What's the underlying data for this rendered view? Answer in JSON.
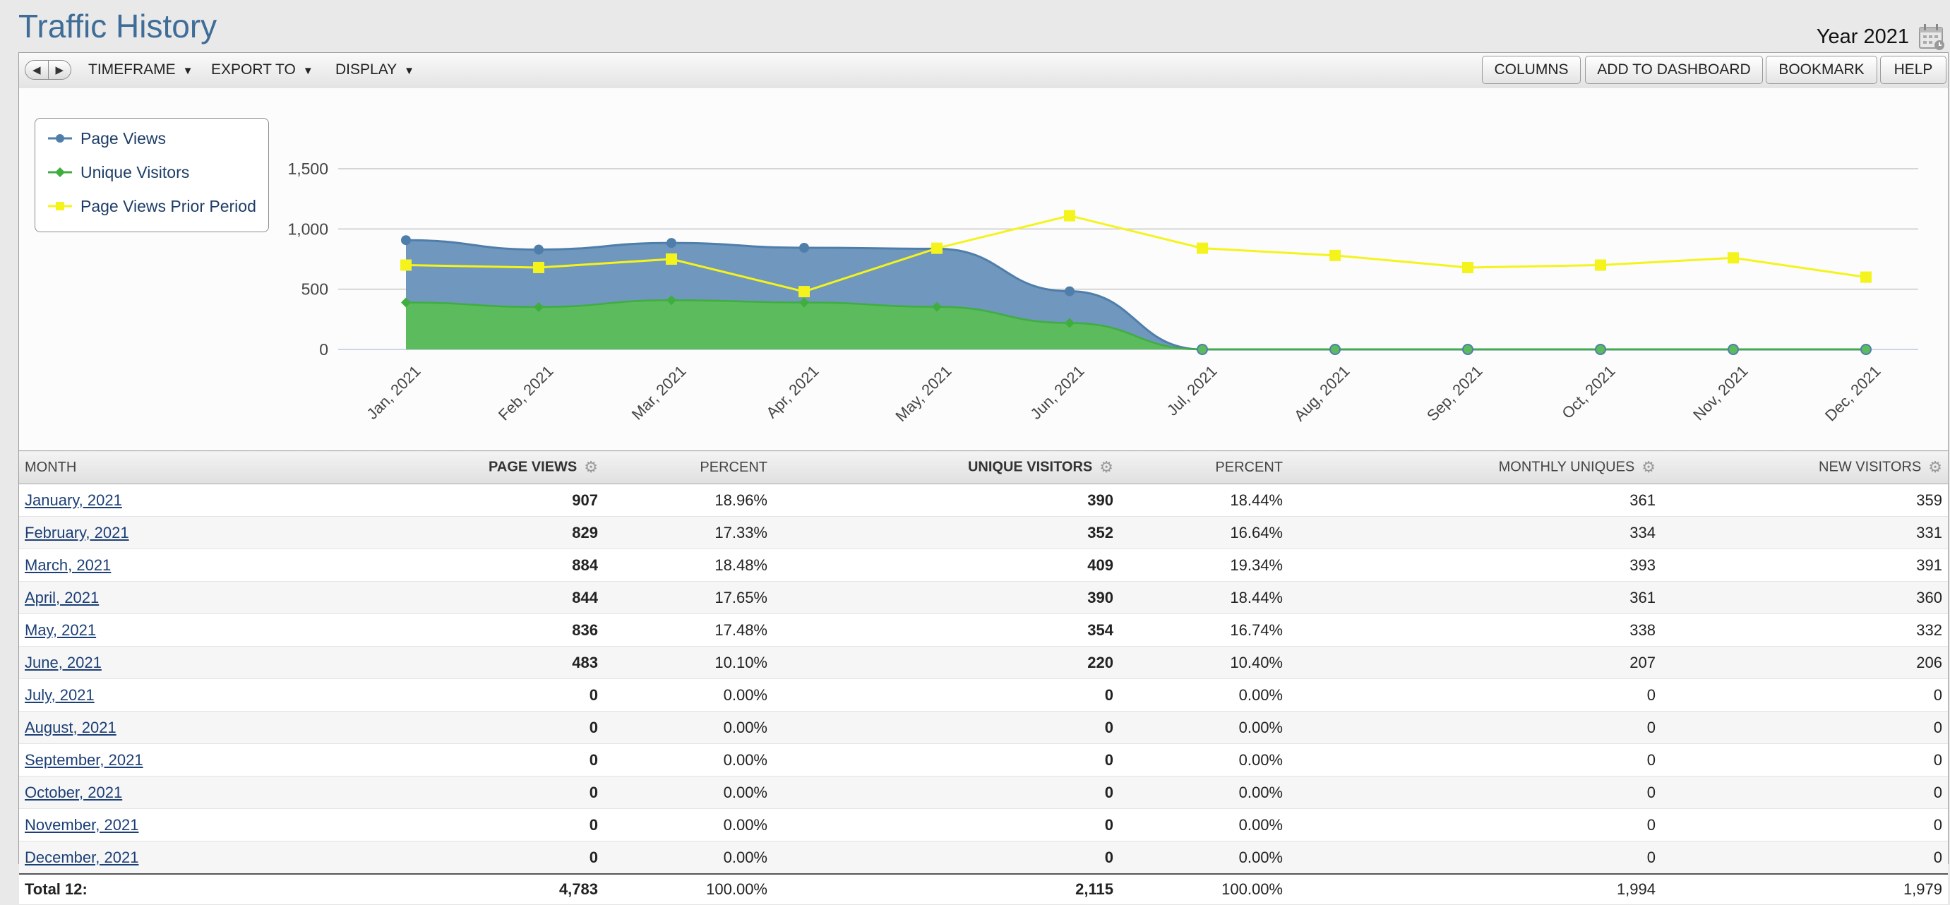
{
  "header": {
    "title": "Traffic History",
    "year_label": "Year 2021"
  },
  "toolbar": {
    "menus": [
      "TIMEFRAME",
      "EXPORT TO",
      "DISPLAY"
    ],
    "buttons": [
      "COLUMNS",
      "ADD TO DASHBOARD",
      "BOOKMARK",
      "HELP"
    ]
  },
  "colors": {
    "page_views": "#4f7eab",
    "page_views_fill": "#7097bd",
    "unique_visitors": "#3fae3f",
    "unique_visitors_fill": "#5cbb5c",
    "prior_period": "#f4f41c",
    "title": "#3f6d98"
  },
  "chart_data": {
    "type": "area",
    "categories": [
      "Jan, 2021",
      "Feb, 2021",
      "Mar, 2021",
      "Apr, 2021",
      "May, 2021",
      "Jun, 2021",
      "Jul, 2021",
      "Aug, 2021",
      "Sep, 2021",
      "Oct, 2021",
      "Nov, 2021",
      "Dec, 2021"
    ],
    "series": [
      {
        "name": "Page Views",
        "values": [
          907,
          829,
          884,
          844,
          836,
          483,
          0,
          0,
          0,
          0,
          0,
          0
        ]
      },
      {
        "name": "Unique Visitors",
        "values": [
          390,
          352,
          409,
          390,
          354,
          220,
          0,
          0,
          0,
          0,
          0,
          0
        ]
      },
      {
        "name": "Page Views Prior Period",
        "values": [
          700,
          680,
          750,
          480,
          840,
          1110,
          840,
          780,
          680,
          700,
          760,
          600
        ]
      }
    ],
    "yticks": [
      "1,500",
      "1,000",
      "500",
      "0"
    ],
    "ylim": [
      0,
      1500
    ],
    "legend_position": "top-left",
    "grid": true
  },
  "table": {
    "columns": [
      "MONTH",
      "PAGE VIEWS",
      "PERCENT",
      "UNIQUE VISITORS",
      "PERCENT",
      "MONTHLY UNIQUES",
      "NEW VISITORS"
    ],
    "rows": [
      [
        "January, 2021",
        "907",
        "18.96%",
        "390",
        "18.44%",
        "361",
        "359"
      ],
      [
        "February, 2021",
        "829",
        "17.33%",
        "352",
        "16.64%",
        "334",
        "331"
      ],
      [
        "March, 2021",
        "884",
        "18.48%",
        "409",
        "19.34%",
        "393",
        "391"
      ],
      [
        "April, 2021",
        "844",
        "17.65%",
        "390",
        "18.44%",
        "361",
        "360"
      ],
      [
        "May, 2021",
        "836",
        "17.48%",
        "354",
        "16.74%",
        "338",
        "332"
      ],
      [
        "June, 2021",
        "483",
        "10.10%",
        "220",
        "10.40%",
        "207",
        "206"
      ],
      [
        "July, 2021",
        "0",
        "0.00%",
        "0",
        "0.00%",
        "0",
        "0"
      ],
      [
        "August, 2021",
        "0",
        "0.00%",
        "0",
        "0.00%",
        "0",
        "0"
      ],
      [
        "September, 2021",
        "0",
        "0.00%",
        "0",
        "0.00%",
        "0",
        "0"
      ],
      [
        "October, 2021",
        "0",
        "0.00%",
        "0",
        "0.00%",
        "0",
        "0"
      ],
      [
        "November, 2021",
        "0",
        "0.00%",
        "0",
        "0.00%",
        "0",
        "0"
      ],
      [
        "December, 2021",
        "0",
        "0.00%",
        "0",
        "0.00%",
        "0",
        "0"
      ]
    ],
    "total": [
      "Total 12:",
      "4,783",
      "100.00%",
      "2,115",
      "100.00%",
      "1,994",
      "1,979"
    ]
  }
}
